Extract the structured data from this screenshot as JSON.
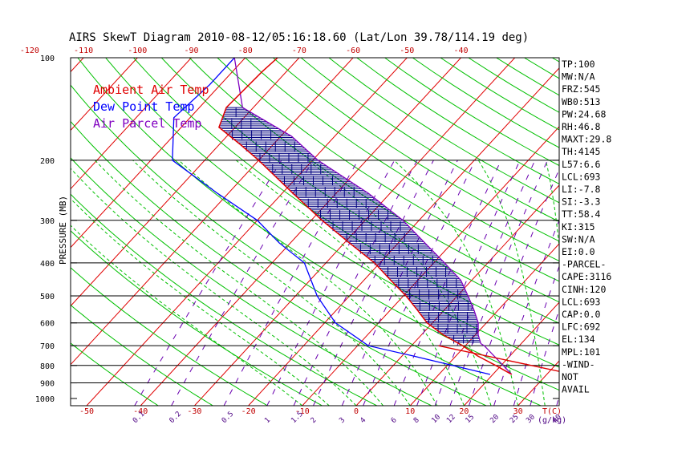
{
  "chart_data": {
    "type": "skewt",
    "title": "AIRS SkewT Diagram 2010-08-12/05:16:18.60 (Lat/Lon 39.78/114.19 deg)",
    "ylabel": "PRESSURE (MB)",
    "xlabel": "T(C)",
    "mixing_label": "(g/kg)",
    "pressure_ticks": [
      "100",
      "200",
      "300",
      "400",
      "500",
      "600",
      "700",
      "800",
      "900",
      "1000"
    ],
    "top_temp_ticks": [
      "-120",
      "-110",
      "-100",
      "-90",
      "-80",
      "-70",
      "-60",
      "-50",
      "-40"
    ],
    "bottom_temp_ticks": [
      "-50",
      "-40",
      "-30",
      "-20",
      "-10",
      "0",
      "10",
      "20",
      "30"
    ],
    "mixing_ratio_ticks": [
      "0.1",
      "0.2",
      "0.5",
      "1",
      "1.5",
      "2",
      "3",
      "4",
      "6",
      "8",
      "10",
      "12",
      "15",
      "20",
      "25",
      "30",
      "40"
    ],
    "legend": [
      {
        "label": "Ambient Air Temp",
        "color": "#e00000"
      },
      {
        "label": "Dew Point Temp",
        "color": "#0000ff"
      },
      {
        "label": "Air Parcel Temp",
        "color": "#8000c0"
      }
    ],
    "ambient_temp": [
      {
        "p": 100,
        "t": -74
      },
      {
        "p": 110,
        "t": -74.5
      },
      {
        "p": 140,
        "t": -75
      },
      {
        "p": 160,
        "t": -73
      },
      {
        "p": 180,
        "t": -66
      },
      {
        "p": 200,
        "t": -60
      },
      {
        "p": 250,
        "t": -48
      },
      {
        "p": 300,
        "t": -38
      },
      {
        "p": 350,
        "t": -29
      },
      {
        "p": 400,
        "t": -21
      },
      {
        "p": 450,
        "t": -15
      },
      {
        "p": 500,
        "t": -9.5
      },
      {
        "p": 550,
        "t": -5
      },
      {
        "p": 600,
        "t": -1
      },
      {
        "p": 650,
        "t": 4
      },
      {
        "p": 700,
        "t": 9.5
      },
      {
        "p": 750,
        "t": 14
      },
      {
        "p": 800,
        "t": 19
      },
      {
        "p": 850,
        "t": 23.5
      }
    ],
    "dew_point": [
      {
        "p": 100,
        "t": -82
      },
      {
        "p": 120,
        "t": -82
      },
      {
        "p": 150,
        "t": -83
      },
      {
        "p": 200,
        "t": -76
      },
      {
        "p": 250,
        "t": -62
      },
      {
        "p": 300,
        "t": -50
      },
      {
        "p": 350,
        "t": -42
      },
      {
        "p": 400,
        "t": -34
      },
      {
        "p": 500,
        "t": -26
      },
      {
        "p": 600,
        "t": -18
      },
      {
        "p": 700,
        "t": -8
      },
      {
        "p": 750,
        "t": 2
      },
      {
        "p": 800,
        "t": 11
      },
      {
        "p": 850,
        "t": 19.5
      }
    ],
    "parcel_temp": [
      {
        "p": 100,
        "t": -82
      },
      {
        "p": 140,
        "t": -72
      },
      {
        "p": 170,
        "t": -58
      },
      {
        "p": 200,
        "t": -49
      },
      {
        "p": 250,
        "t": -34
      },
      {
        "p": 300,
        "t": -23
      },
      {
        "p": 350,
        "t": -15
      },
      {
        "p": 400,
        "t": -8
      },
      {
        "p": 450,
        "t": -2
      },
      {
        "p": 500,
        "t": 2
      },
      {
        "p": 550,
        "t": 5.5
      },
      {
        "p": 600,
        "t": 8.5
      },
      {
        "p": 650,
        "t": 10.5
      },
      {
        "p": 690,
        "t": 12.5
      },
      {
        "p": 700,
        "t": 13.5
      },
      {
        "p": 850,
        "t": 23.5
      }
    ],
    "indices": [
      "TP:100",
      "MW:N/A",
      "FRZ:545",
      "WB0:513",
      "PW:24.68",
      "RH:46.8",
      "MAXT:29.8",
      "TH:4145",
      "L57:6.6",
      "LCL:693",
      "LI:-7.8",
      "SI:-3.3",
      "TT:58.4",
      "KI:315",
      "SW:N/A",
      "EI:0.0",
      "-PARCEL-",
      "CAPE:3116",
      "CINH:120",
      "LCL:693",
      "CAP:0.0",
      "LFC:692",
      "EL:134",
      "MPL:101",
      "-WIND-",
      "NOT",
      "AVAIL"
    ]
  },
  "colors": {
    "background": "#ffffff",
    "isotherm": "#e00000",
    "dry_adiabat": "#00c000",
    "moist_adiabat": "#00c000",
    "mixing_ratio": "#6a00b0",
    "hatch": "#000080",
    "axis": "#000000"
  }
}
